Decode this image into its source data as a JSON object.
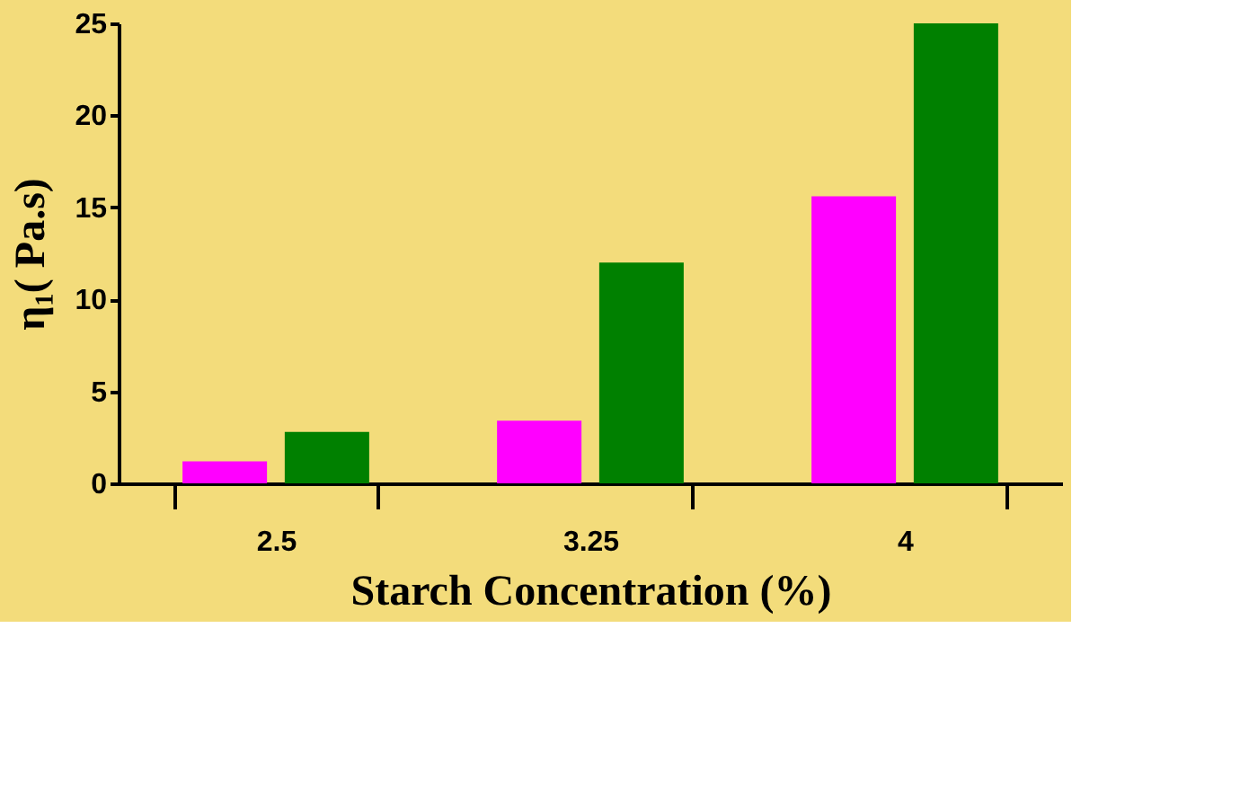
{
  "chart_data": {
    "type": "bar",
    "xlabel": "Starch Concentration (%)",
    "ylabel": "η₁( Pa.s)",
    "categories": [
      "2.5",
      "3.25",
      "4"
    ],
    "series": [
      {
        "color": "#ff00ff",
        "values": [
          1.2,
          3.4,
          15.6
        ]
      },
      {
        "color": "#008000",
        "values": [
          2.8,
          12.0,
          25.0
        ]
      }
    ],
    "ylim": [
      0,
      25
    ],
    "yticks": [
      0,
      5,
      10,
      15,
      20,
      25
    ],
    "grid": false,
    "legend": false
  }
}
